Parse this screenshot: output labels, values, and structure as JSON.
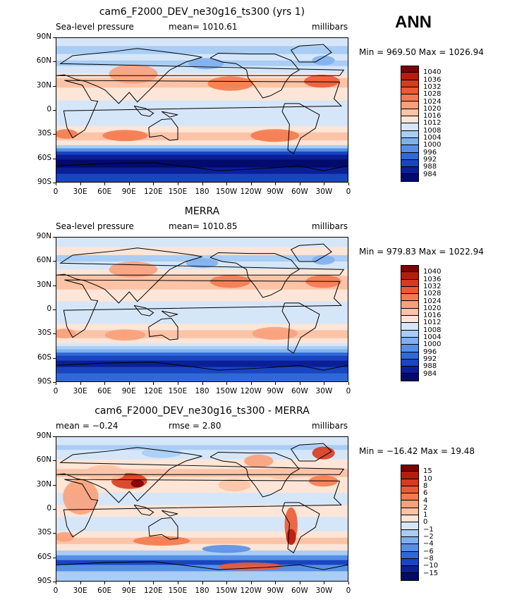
{
  "season": "ANN",
  "panels": [
    {
      "title": "cam6_F2000_DEV_ne30g16_ts300 (yrs 1)",
      "left": "Sea-level pressure",
      "center": "mean= 1010.61",
      "right": "millibars",
      "minmax": "Min = 969.50 Max = 1026.94",
      "kind": "model",
      "levels": [
        "1040",
        "1036",
        "1032",
        "1028",
        "1024",
        "1020",
        "1016",
        "1012",
        "1008",
        "1004",
        "1000",
        "996",
        "992",
        "988",
        "984"
      ]
    },
    {
      "title": "MERRA",
      "left": "Sea-level pressure",
      "center": "mean= 1010.85",
      "right": "millibars",
      "minmax": "Min = 979.83 Max = 1022.94",
      "kind": "obs",
      "levels": [
        "1040",
        "1036",
        "1032",
        "1028",
        "1024",
        "1020",
        "1016",
        "1012",
        "1008",
        "1004",
        "1000",
        "996",
        "992",
        "988",
        "984"
      ]
    },
    {
      "title": "cam6_F2000_DEV_ne30g16_ts300 - MERRA",
      "left": "mean =   −0.24",
      "center": "rmse =   2.80",
      "right": "millibars",
      "minmax": "Min = −16.42 Max =   19.48",
      "kind": "diff",
      "levels": [
        "15",
        "10",
        "8",
        "6",
        "4",
        "2",
        "1",
        "0",
        "−1",
        "−2",
        "−4",
        "−6",
        "−8",
        "−10",
        "−15"
      ]
    }
  ],
  "xticks": [
    "0",
    "30E",
    "60E",
    "90E",
    "120E",
    "150E",
    "180",
    "150W",
    "120W",
    "90W",
    "60W",
    "30W",
    "0"
  ],
  "yticks": [
    "90N",
    "60N",
    "30N",
    "0",
    "30S",
    "60S",
    "90S"
  ],
  "colors": {
    "scale": [
      "#7f0000",
      "#b71c0c",
      "#d93a1d",
      "#ec5a33",
      "#f47a4f",
      "#f9a07b",
      "#fcc3a6",
      "#fde5d7",
      "#d6e6f9",
      "#a9cdf4",
      "#7fb0ee",
      "#5690e6",
      "#2f69d8",
      "#1a45c0",
      "#0a1f96",
      "#020b6b"
    ]
  },
  "chart_data": [
    {
      "type": "heatmap",
      "title": "cam6_F2000_DEV_ne30g16_ts300 (yrs 1)",
      "subtitle": "Sea-level pressure",
      "units": "millibars",
      "mean": 1010.61,
      "min": 969.5,
      "max": 1026.94,
      "x": [
        "0",
        "30E",
        "60E",
        "90E",
        "120E",
        "150E",
        "180",
        "150W",
        "120W",
        "90W",
        "60W",
        "30W",
        "0"
      ],
      "y": [
        "90N",
        "60N",
        "30N",
        "0",
        "30S",
        "60S",
        "90S"
      ],
      "levels": [
        984,
        988,
        992,
        996,
        1000,
        1004,
        1008,
        1012,
        1016,
        1020,
        1024,
        1028,
        1032,
        1036,
        1040
      ]
    },
    {
      "type": "heatmap",
      "title": "MERRA",
      "subtitle": "Sea-level pressure",
      "units": "millibars",
      "mean": 1010.85,
      "min": 979.83,
      "max": 1022.94,
      "x": [
        "0",
        "30E",
        "60E",
        "90E",
        "120E",
        "150E",
        "180",
        "150W",
        "120W",
        "90W",
        "60W",
        "30W",
        "0"
      ],
      "y": [
        "90N",
        "60N",
        "30N",
        "0",
        "30S",
        "60S",
        "90S"
      ],
      "levels": [
        984,
        988,
        992,
        996,
        1000,
        1004,
        1008,
        1012,
        1016,
        1020,
        1024,
        1028,
        1032,
        1036,
        1040
      ]
    },
    {
      "type": "heatmap",
      "title": "cam6_F2000_DEV_ne30g16_ts300 - MERRA",
      "units": "millibars",
      "mean": -0.24,
      "rmse": 2.8,
      "min": -16.42,
      "max": 19.48,
      "x": [
        "0",
        "30E",
        "60E",
        "90E",
        "120E",
        "150E",
        "180",
        "150W",
        "120W",
        "90W",
        "60W",
        "30W",
        "0"
      ],
      "y": [
        "90N",
        "60N",
        "30N",
        "0",
        "30S",
        "60S",
        "90S"
      ],
      "levels": [
        -15,
        -10,
        -8,
        -6,
        -4,
        -2,
        -1,
        0,
        1,
        2,
        4,
        6,
        8,
        10,
        15
      ]
    }
  ]
}
